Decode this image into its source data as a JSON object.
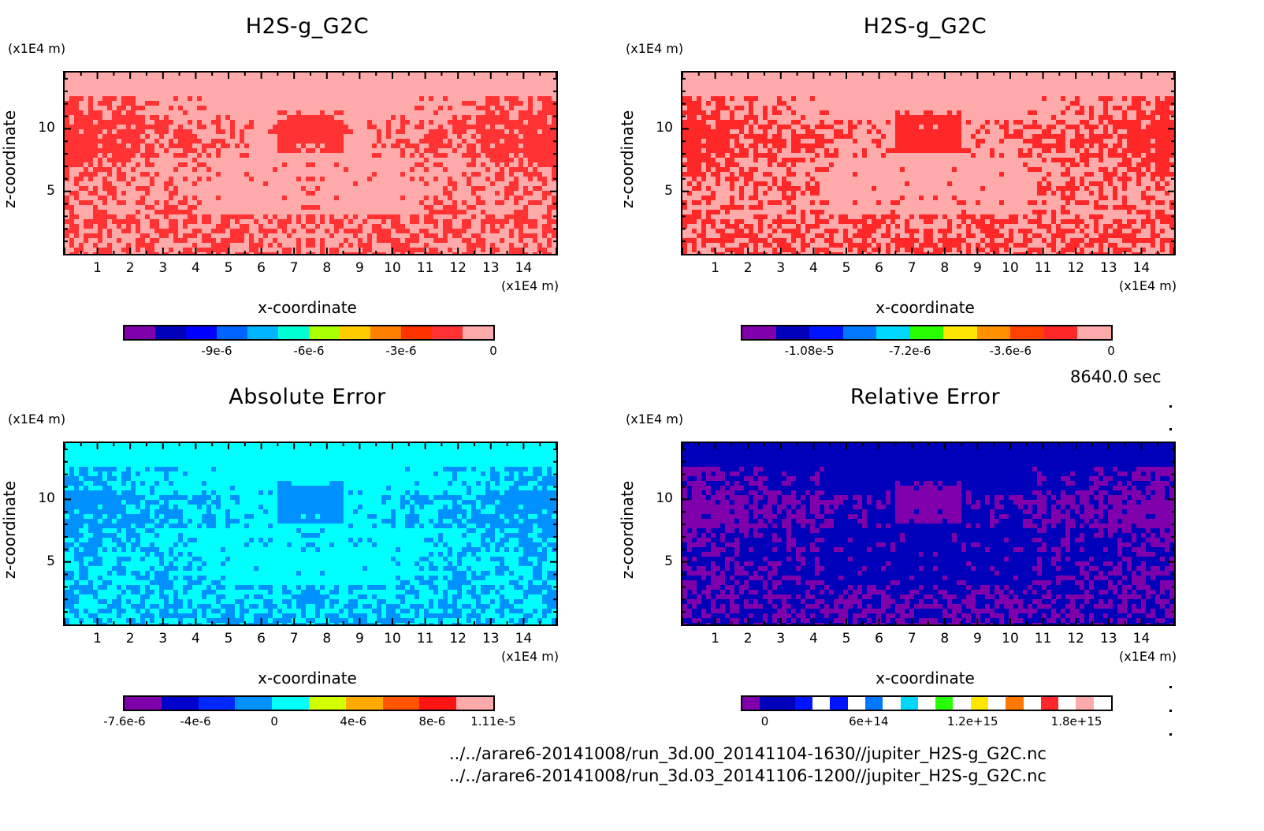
{
  "time_label": "8640.0 sec",
  "file_paths": [
    "../../arare6-20141008/run_3d.00_20141104-1630//jupiter_H2S-g_G2C.nc",
    "../../arare6-20141008/run_3d.03_20141106-1200//jupiter_H2S-g_G2C.nc"
  ],
  "chart_data": [
    {
      "type": "heatmap",
      "title": "H2S-g_G2C",
      "xlabel": "x-coordinate",
      "ylabel": "z-coordinate",
      "x_unit": "(x1E4 m)",
      "y_unit": "(x1E4 m)",
      "xlim": [
        0,
        15
      ],
      "ylim": [
        0,
        14.5
      ],
      "x_ticks": [
        "1",
        "2",
        "3",
        "4",
        "5",
        "6",
        "7",
        "8",
        "9",
        "10",
        "11",
        "12",
        "13",
        "14"
      ],
      "y_ticks": [
        "5",
        "10"
      ],
      "colorbar": {
        "colors": [
          "#7f00aa",
          "#0000bb",
          "#0000ff",
          "#0064ff",
          "#00b4ff",
          "#00ffd2",
          "#aaff00",
          "#ffcc00",
          "#ff7f00",
          "#ff3300",
          "#ff3333",
          "#ffaaaa"
        ],
        "labels": [
          "-9e-6",
          "-6e-6",
          "-3e-6",
          "0"
        ],
        "label_values": [
          -9e-06,
          -6e-06,
          -3e-06,
          0
        ],
        "range": [
          -1.2e-05,
          0.0
        ]
      },
      "background": "#ffaaaa",
      "feature": "#ff3333"
    },
    {
      "type": "heatmap",
      "title": "H2S-g_G2C",
      "xlabel": "x-coordinate",
      "ylabel": "z-coordinate",
      "x_unit": "(x1E4 m)",
      "y_unit": "(x1E4 m)",
      "xlim": [
        0,
        15
      ],
      "ylim": [
        0,
        14.5
      ],
      "x_ticks": [
        "1",
        "2",
        "3",
        "4",
        "5",
        "6",
        "7",
        "8",
        "9",
        "10",
        "11",
        "12",
        "13",
        "14"
      ],
      "y_ticks": [
        "5",
        "10"
      ],
      "colorbar": {
        "colors": [
          "#7f00aa",
          "#0000bb",
          "#0014ff",
          "#0078ff",
          "#00d7ff",
          "#28ff00",
          "#ffe600",
          "#ff9100",
          "#ff4100",
          "#ff2828",
          "#ffaaaa"
        ],
        "labels": [
          "-1.08e-5",
          "-7.2e-6",
          "-3.6e-6",
          "0"
        ],
        "label_values": [
          -1.08e-05,
          -7.2e-06,
          -3.6e-06,
          0
        ],
        "range": [
          -1.32e-05,
          0.0
        ]
      },
      "background": "#ffaaaa",
      "feature": "#ff2828"
    },
    {
      "type": "heatmap",
      "title": "Absolute Error",
      "xlabel": "x-coordinate",
      "ylabel": "z-coordinate",
      "x_unit": "(x1E4 m)",
      "y_unit": "(x1E4 m)",
      "xlim": [
        0,
        15
      ],
      "ylim": [
        0,
        14.5
      ],
      "x_ticks": [
        "1",
        "2",
        "3",
        "4",
        "5",
        "6",
        "7",
        "8",
        "9",
        "10",
        "11",
        "12",
        "13",
        "14"
      ],
      "y_ticks": [
        "5",
        "10"
      ],
      "colorbar": {
        "colors": [
          "#7f00aa",
          "#0000cc",
          "#0028ff",
          "#0091ff",
          "#00ffff",
          "#d2ff00",
          "#ffaa00",
          "#ff5500",
          "#ff1414",
          "#ffaaaa"
        ],
        "labels": [
          "-7.6e-6",
          "-4e-6",
          "0",
          "4e-6",
          "8e-6",
          "1.11e-5"
        ],
        "label_values": [
          -7.6e-06,
          -4e-06,
          0,
          4e-06,
          8e-06,
          1.11e-05
        ],
        "range": [
          -7.6e-06,
          1.11e-05
        ]
      },
      "background": "#00ffff",
      "feature": "#0091ff"
    },
    {
      "type": "heatmap",
      "title": "Relative Error",
      "xlabel": "x-coordinate",
      "ylabel": "z-coordinate",
      "x_unit": "(x1E4 m)",
      "y_unit": "(x1E4 m)",
      "xlim": [
        0,
        15
      ],
      "ylim": [
        0,
        14.5
      ],
      "x_ticks": [
        "1",
        "2",
        "3",
        "4",
        "5",
        "6",
        "7",
        "8",
        "9",
        "10",
        "11",
        "12",
        "13",
        "14"
      ],
      "y_ticks": [
        "5",
        "10"
      ],
      "colorbar": {
        "colors": [
          "#7f00aa",
          "#0000bb",
          "#0000bb",
          "#0014ff",
          "#ffffff",
          "#0014ff",
          "#ffffff",
          "#0078ff",
          "#ffffff",
          "#00d7ff",
          "#ffffff",
          "#28ff00",
          "#ffffff",
          "#ffe600",
          "#ffffff",
          "#ff7800",
          "#ffffff",
          "#ff2828",
          "#ffffff",
          "#ffaaaa",
          "#ffffff"
        ],
        "labels": [
          "0",
          "6e+14",
          "1.2e+15",
          "1.8e+15"
        ],
        "label_values": [
          0,
          600000000000000.0,
          1200000000000000.0,
          1800000000000000.0
        ],
        "range": [
          -130000000000000.0,
          2000000000000000.0
        ]
      },
      "background": "#0000bb",
      "feature": "#7f00aa"
    }
  ]
}
